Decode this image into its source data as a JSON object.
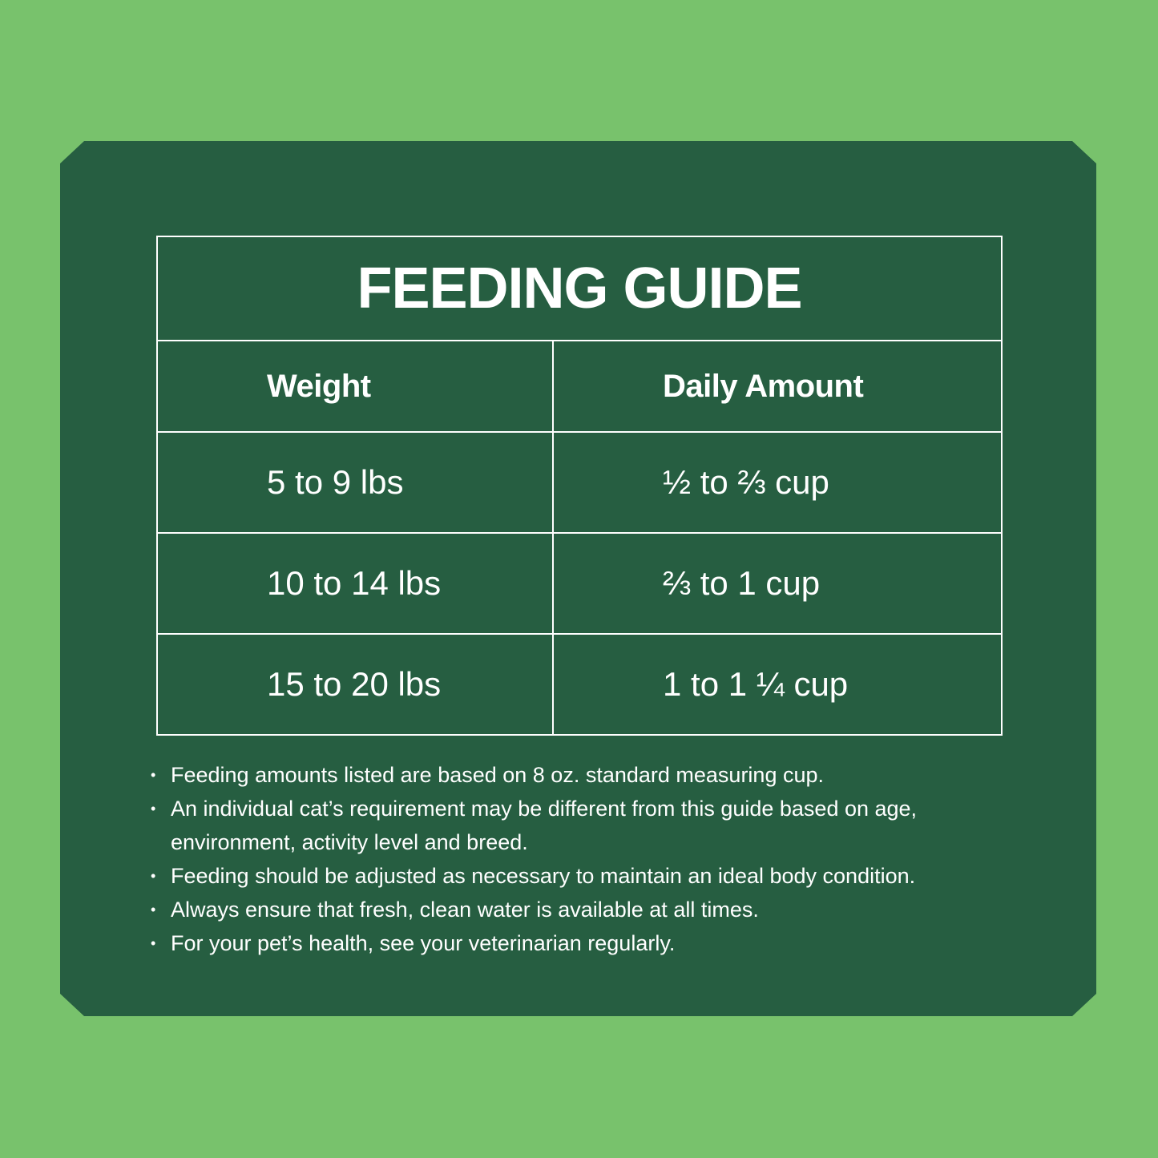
{
  "colors": {
    "background": "#78c26c",
    "card": "#265e41",
    "text": "#ffffff"
  },
  "title": "FEEDING GUIDE",
  "headers": [
    "Weight",
    "Daily Amount"
  ],
  "rows": [
    {
      "weight": "5 to 9 lbs",
      "amount": "½ to ⅔ cup"
    },
    {
      "weight": "10 to 14 lbs",
      "amount": "⅔ to 1 cup"
    },
    {
      "weight": "15 to 20 lbs",
      "amount": "1 to 1 ¼ cup"
    }
  ],
  "notes": [
    "Feeding amounts listed are based on 8 oz. standard measuring cup.",
    "An individual cat’s requirement may be different from this guide based on age, environment, activity level and breed.",
    "Feeding should be adjusted as necessary to maintain an ideal body condition.",
    "Always ensure that fresh, clean water is available at all times.",
    "For your pet’s health, see your veterinarian regularly."
  ]
}
